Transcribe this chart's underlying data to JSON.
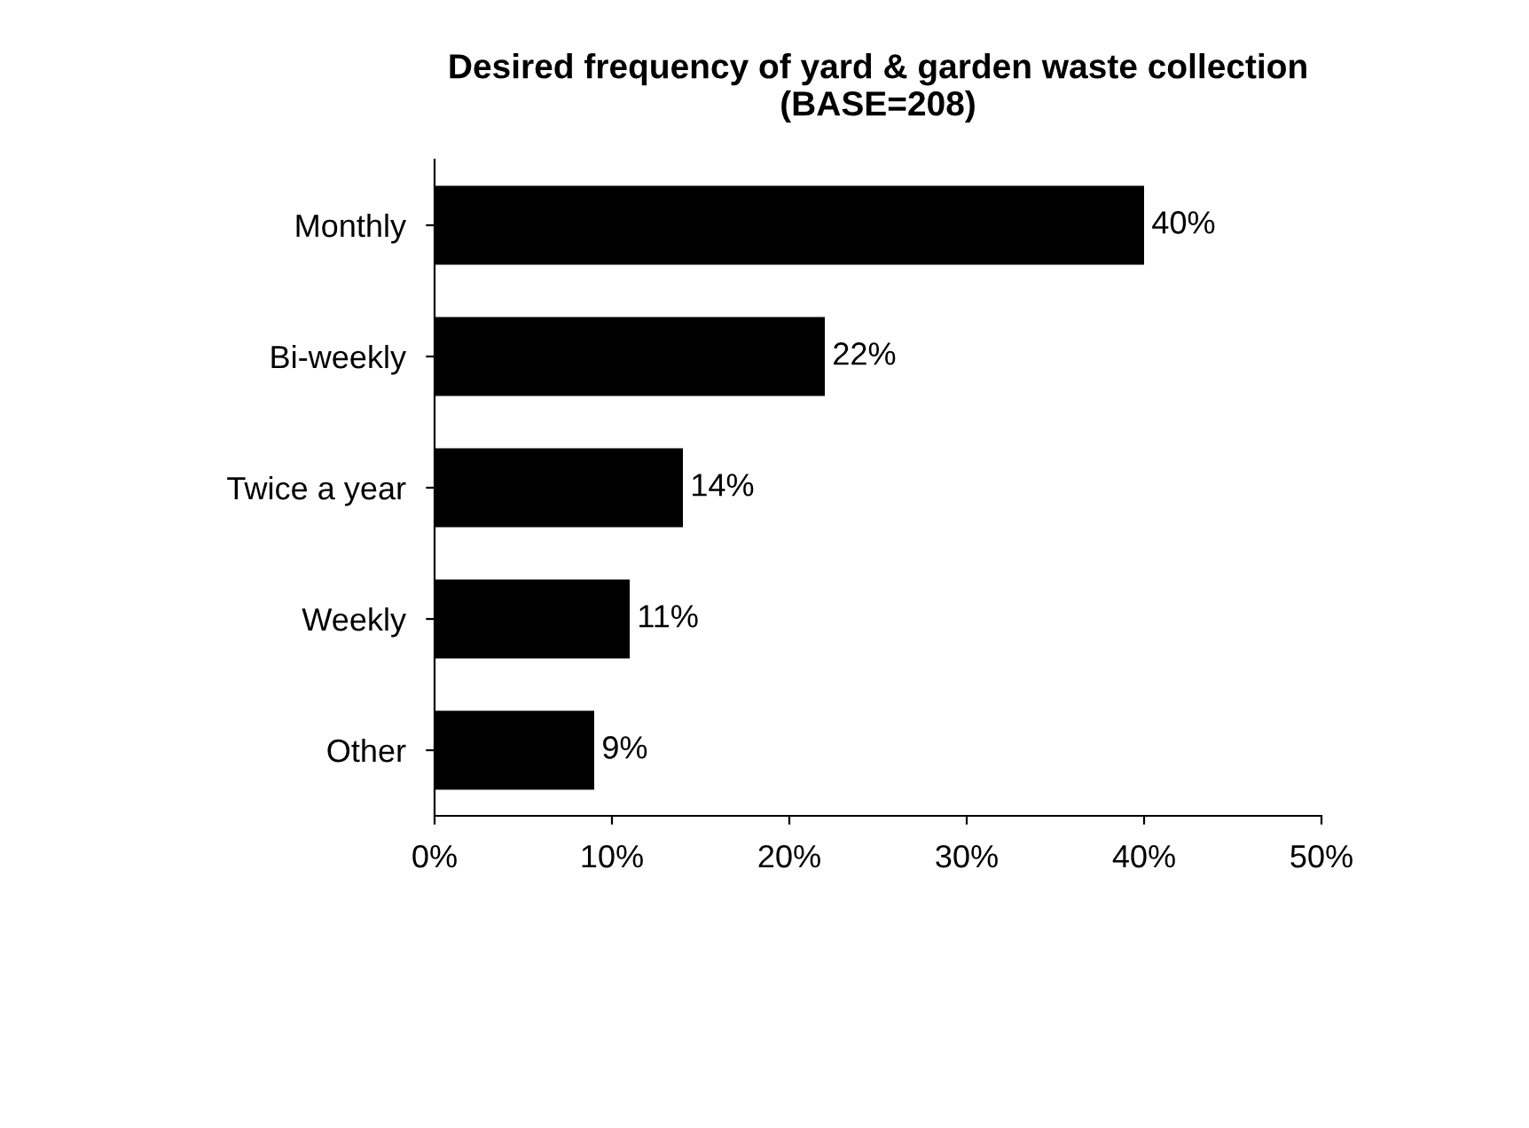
{
  "chart_data": {
    "type": "bar",
    "orientation": "horizontal",
    "title": "Desired frequency of yard & garden waste collection\n(BASE=208)",
    "categories": [
      "Monthly",
      "Bi-weekly",
      "Twice a year",
      "Weekly",
      "Other"
    ],
    "values": [
      40,
      22,
      14,
      11,
      9
    ],
    "value_labels": [
      "40%",
      "22%",
      "14%",
      "11%",
      "9%"
    ],
    "color": "#000000",
    "xlim": [
      0,
      50
    ],
    "xticks": [
      {
        "value": 0,
        "label": "0%"
      },
      {
        "value": 10,
        "label": "10%"
      },
      {
        "value": 20,
        "label": "20%"
      },
      {
        "value": 30,
        "label": "30%"
      },
      {
        "value": 40,
        "label": "40%"
      },
      {
        "value": 50,
        "label": "50%"
      }
    ],
    "grid": false,
    "legend": false
  }
}
